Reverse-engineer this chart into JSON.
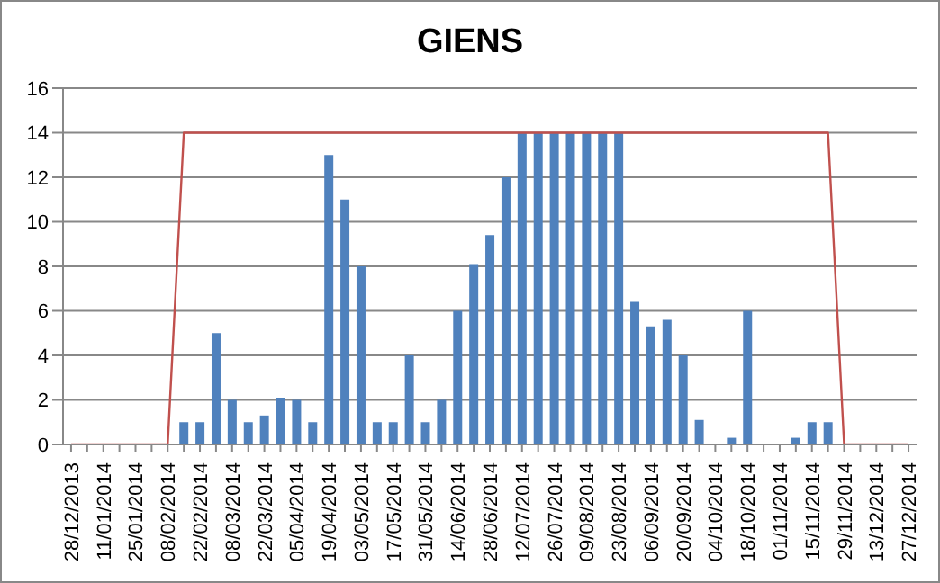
{
  "chart_data": {
    "type": "bar",
    "title": "GIENS",
    "categories": [
      "28/12/2013",
      null,
      "11/01/2014",
      null,
      "25/01/2014",
      null,
      "08/02/2014",
      null,
      "22/02/2014",
      null,
      "08/03/2014",
      null,
      "22/03/2014",
      null,
      "05/04/2014",
      null,
      "19/04/2014",
      null,
      "03/05/2014",
      null,
      "17/05/2014",
      null,
      "31/05/2014",
      null,
      "14/06/2014",
      null,
      "28/06/2014",
      null,
      "12/07/2014",
      null,
      "26/07/2014",
      null,
      "09/08/2014",
      null,
      "23/08/2014",
      null,
      "06/09/2014",
      null,
      "20/09/2014",
      null,
      "04/10/2014",
      null,
      "18/10/2014",
      null,
      "01/11/2014",
      null,
      "15/11/2014",
      null,
      "29/11/2014",
      null,
      "13/12/2014",
      null,
      "27/12/2014"
    ],
    "series": [
      {
        "color": "#4f81bd",
        "values": [
          0,
          0,
          0,
          0,
          0,
          0,
          0,
          1,
          1,
          5,
          2,
          1,
          1.3,
          2.1,
          2,
          1,
          13,
          11,
          8,
          1,
          1,
          4,
          1,
          2,
          6,
          8.1,
          9.4,
          12,
          14,
          14,
          14,
          14,
          14,
          14,
          14,
          6.4,
          5.3,
          5.6,
          4,
          1.1,
          0,
          0.3,
          6,
          0,
          0,
          0.3,
          1,
          1,
          0,
          0,
          0,
          0,
          0
        ]
      },
      {
        "type": "line",
        "color": "#c0504d",
        "values": [
          0,
          0,
          0,
          0,
          0,
          0,
          0,
          14,
          14,
          14,
          14,
          14,
          14,
          14,
          14,
          14,
          14,
          14,
          14,
          14,
          14,
          14,
          14,
          14,
          14,
          14,
          14,
          14,
          14,
          14,
          14,
          14,
          14,
          14,
          14,
          14,
          14,
          14,
          14,
          14,
          14,
          14,
          14,
          14,
          14,
          14,
          14,
          14,
          0,
          0,
          0,
          0,
          0
        ]
      }
    ],
    "ylim": [
      0,
      16
    ],
    "yticks": [
      0,
      2,
      4,
      6,
      8,
      10,
      12,
      14,
      16
    ],
    "grid": "y",
    "legend": false
  }
}
